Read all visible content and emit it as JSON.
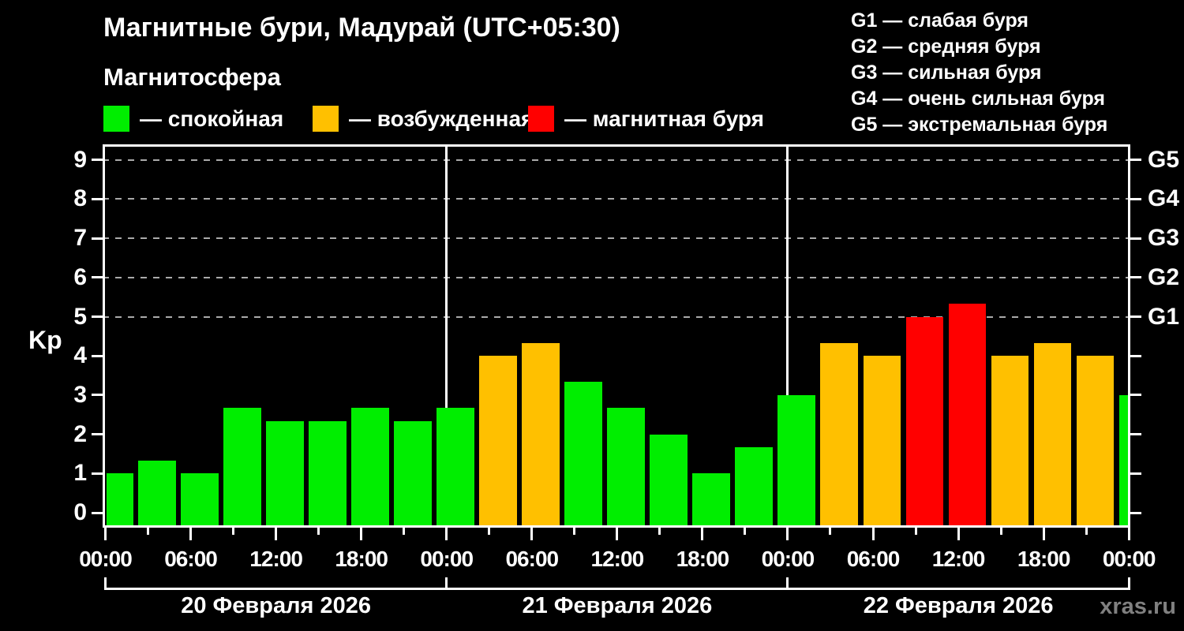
{
  "header": {
    "title": "Магнитные бури, Мадурай (UTC+05:30)",
    "subtitle": "Магнитосфера"
  },
  "legend": {
    "items": [
      {
        "state": "quiet",
        "label": "— спокойная",
        "color": "#00ee00"
      },
      {
        "state": "excited",
        "label": "— возбужденная",
        "color": "#ffc000"
      },
      {
        "state": "storm",
        "label": "— магнитная буря",
        "color": "#ff0000"
      }
    ]
  },
  "g_scale_legend": {
    "items": [
      "G1 — слабая буря",
      "G2 — средняя буря",
      "G3 — сильная буря",
      "G4 — очень сильная буря",
      "G5 — экстремальная буря"
    ]
  },
  "watermark": "xras.ru",
  "chart_data": {
    "type": "bar",
    "title": "Магнитные бури, Мадурай (UTC+05:30)",
    "ylabel": "Kp",
    "ylim": [
      -0.37,
      9.4
    ],
    "y_ticks": [
      0,
      1,
      2,
      3,
      4,
      5,
      6,
      7,
      8,
      9
    ],
    "dashed_gridline_levels": [
      5,
      6,
      7,
      8,
      9
    ],
    "right_axis_labels": [
      {
        "kp": 5,
        "label": "G1"
      },
      {
        "kp": 6,
        "label": "G2"
      },
      {
        "kp": 7,
        "label": "G3"
      },
      {
        "kp": 8,
        "label": "G4"
      },
      {
        "kp": 9,
        "label": "G5"
      }
    ],
    "x_labels": [
      "00:00",
      "06:00",
      "12:00",
      "18:00",
      "00:00",
      "06:00",
      "12:00",
      "18:00",
      "00:00",
      "06:00",
      "12:00",
      "18:00",
      "00:00"
    ],
    "hours_per_bar": 3,
    "day_boundaries_hours": [
      24,
      48
    ],
    "days": [
      {
        "date": "20 Февраля 2026",
        "kp": [
          1,
          1.33,
          1,
          2.67,
          2.33,
          2.33,
          2.67,
          2.33
        ]
      },
      {
        "date": "21 Февраля 2026",
        "kp": [
          2.67,
          4,
          4.33,
          3.33,
          2.67,
          2,
          1,
          1.67
        ]
      },
      {
        "date": "22 Февраля 2026",
        "kp": [
          3,
          4.33,
          4,
          5,
          5.33,
          4,
          4.33,
          4
        ]
      }
    ],
    "next_day_partial_kp": 3,
    "state_thresholds": {
      "excited_min_kp": 4,
      "storm_min_kp": 5
    },
    "colors": {
      "quiet": "#00ee00",
      "excited": "#ffc000",
      "storm": "#ff0000",
      "grid": "#aaaaaa",
      "axis": "#ffffff",
      "background": "#000000"
    },
    "legend_position": "top",
    "grid": "dashed horizontal at Kp 5-9 only"
  }
}
